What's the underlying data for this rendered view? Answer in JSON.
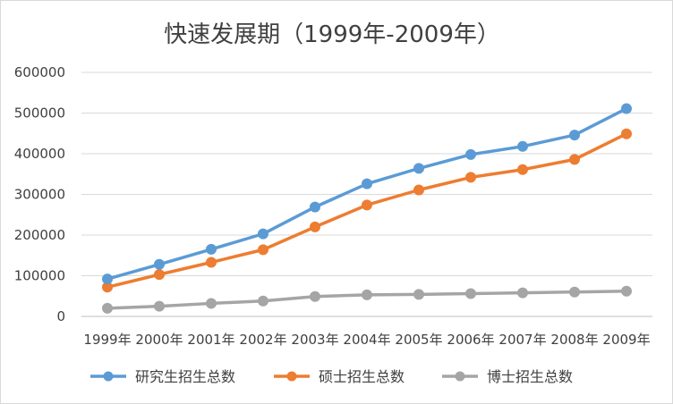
{
  "chart_data": {
    "type": "line",
    "title": "快速发展期（1999年-2009年）",
    "categories": [
      "1999年",
      "2000年",
      "2001年",
      "2002年",
      "2003年",
      "2004年",
      "2005年",
      "2006年",
      "2007年",
      "2008年",
      "2009年"
    ],
    "ylim": [
      0,
      600000
    ],
    "yticks": [
      "0",
      "100000",
      "200000",
      "300000",
      "400000",
      "500000",
      "600000"
    ],
    "grid": true,
    "legend_position": "bottom",
    "series": [
      {
        "name": "研究生招生总数",
        "color": "#5b9bd5",
        "values": [
          92000,
          128000,
          165000,
          203000,
          269000,
          326000,
          364000,
          398000,
          418000,
          446000,
          511000
        ]
      },
      {
        "name": "硕士招生总数",
        "color": "#ed7d31",
        "values": [
          72000,
          103000,
          133000,
          164000,
          220000,
          274000,
          311000,
          342000,
          361000,
          386000,
          449000
        ]
      },
      {
        "name": "博士招生总数",
        "color": "#a5a5a5",
        "values": [
          20000,
          25000,
          32000,
          38000,
          49000,
          53000,
          54000,
          56000,
          58000,
          60000,
          62000
        ]
      }
    ]
  }
}
